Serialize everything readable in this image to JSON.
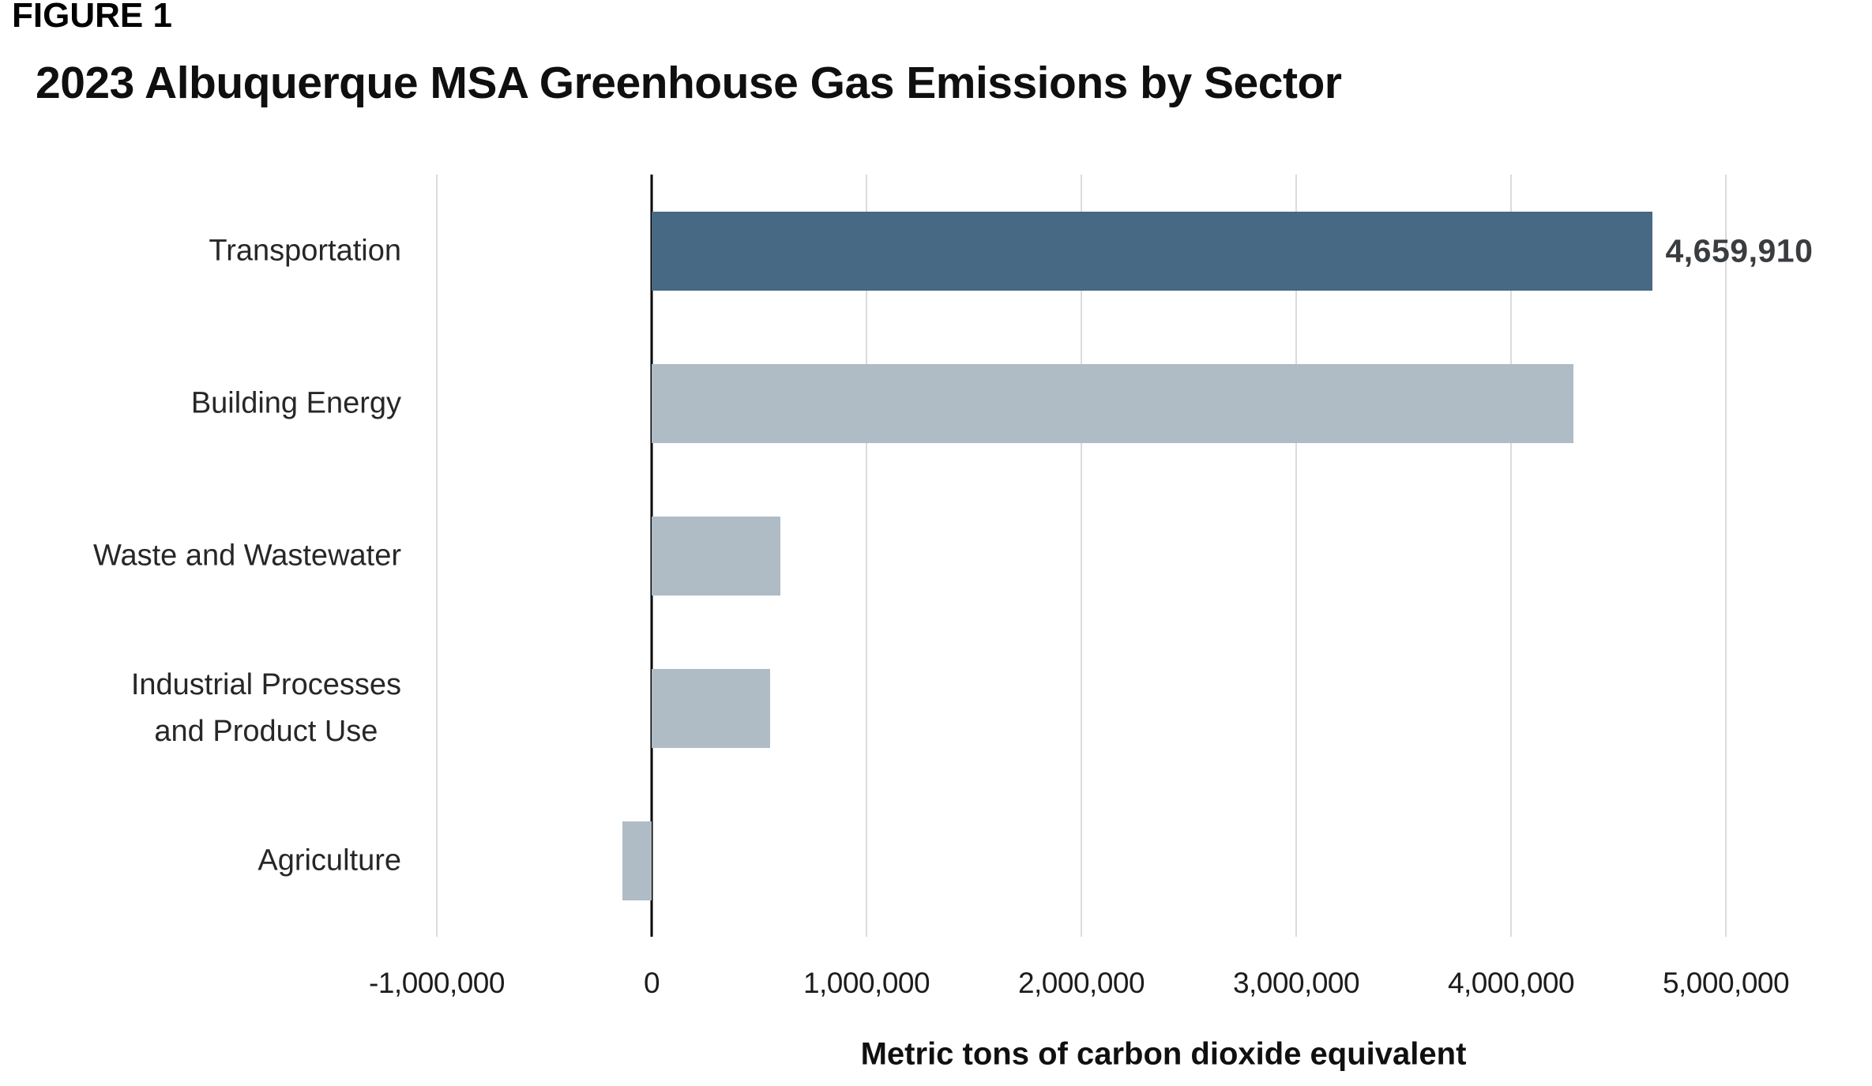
{
  "figure_label": "FIGURE 1",
  "chart_data": {
    "type": "bar",
    "orientation": "horizontal",
    "title": "2023 Albuquerque MSA Greenhouse Gas Emissions by Sector",
    "xlabel": "Metric tons of carbon dioxide equivalent",
    "ylabel": "",
    "categories": [
      "Transportation",
      "Building Energy",
      "Waste and Wastewater",
      "Industrial Processes\nand Product Use",
      "Agriculture"
    ],
    "values": [
      4659910,
      4290000,
      600000,
      550000,
      -135000
    ],
    "data_labels": [
      "4,659,910",
      "",
      "",
      "",
      ""
    ],
    "bar_colors": [
      "#476983",
      "#AFBCC6",
      "#AFBCC6",
      "#AFBCC6",
      "#AFBCC6"
    ],
    "xticks": [
      -1000000,
      0,
      1000000,
      2000000,
      3000000,
      4000000,
      5000000
    ],
    "xtick_labels": [
      "-1,000,000",
      "0",
      "1,000,000",
      "2,000,000",
      "3,000,000",
      "4,000,000",
      "5,000,000"
    ],
    "xlim": [
      -1000000,
      5000000
    ],
    "grid": "vertical-light",
    "zero_line": true,
    "legend": "none",
    "colors": {
      "highlight_bar": "#476983",
      "default_bar": "#AFBCC6",
      "gridline": "#DBDBDB",
      "zero_line": "#000000",
      "value_label": "#3A3D40"
    }
  }
}
